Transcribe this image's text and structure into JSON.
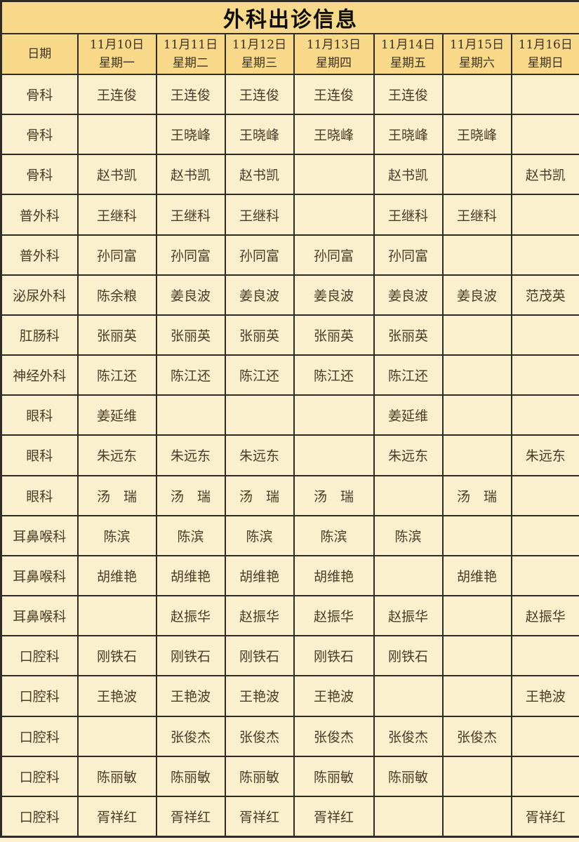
{
  "table": {
    "title": "外科出诊信息",
    "date_col_header": "日期",
    "day_headers": [
      {
        "date": "11月10日",
        "weekday": "星期一"
      },
      {
        "date": "11月11日",
        "weekday": "星期二"
      },
      {
        "date": "11月12日",
        "weekday": "星期三"
      },
      {
        "date": "11月13日",
        "weekday": "星期四"
      },
      {
        "date": "11月14日",
        "weekday": "星期五"
      },
      {
        "date": "11月15日",
        "weekday": "星期六"
      },
      {
        "date": "11月16日",
        "weekday": "星期日"
      }
    ],
    "rows": [
      {
        "dept": "骨科",
        "cells": [
          "王连俊",
          "王连俊",
          "王连俊",
          "王连俊",
          "王连俊",
          "",
          ""
        ]
      },
      {
        "dept": "骨科",
        "cells": [
          "",
          "王晓峰",
          "王晓峰",
          "王晓峰",
          "王晓峰",
          "王晓峰",
          ""
        ]
      },
      {
        "dept": "骨科",
        "cells": [
          "赵书凯",
          "赵书凯",
          "赵书凯",
          "",
          "赵书凯",
          "",
          "赵书凯"
        ]
      },
      {
        "dept": "普外科",
        "cells": [
          "王继科",
          "王继科",
          "王继科",
          "",
          "王继科",
          "王继科",
          ""
        ]
      },
      {
        "dept": "普外科",
        "cells": [
          "孙同富",
          "孙同富",
          "孙同富",
          "孙同富",
          "孙同富",
          "",
          ""
        ]
      },
      {
        "dept": "泌尿外科",
        "cells": [
          "陈余粮",
          "姜良波",
          "姜良波",
          "姜良波",
          "姜良波",
          "姜良波",
          "范茂英"
        ]
      },
      {
        "dept": "肛肠科",
        "cells": [
          "张丽英",
          "张丽英",
          "张丽英",
          "张丽英",
          "张丽英",
          "",
          ""
        ]
      },
      {
        "dept": "神经外科",
        "cells": [
          "陈江还",
          "陈江还",
          "陈江还",
          "陈江还",
          "陈江还",
          "",
          ""
        ]
      },
      {
        "dept": "眼科",
        "cells": [
          "姜延维",
          "",
          "",
          "",
          "姜延维",
          "",
          ""
        ]
      },
      {
        "dept": "眼科",
        "cells": [
          "朱远东",
          "朱远东",
          "朱远东",
          "",
          "朱远东",
          "",
          "朱远东"
        ]
      },
      {
        "dept": "眼科",
        "cells": [
          "汤　瑞",
          "汤　瑞",
          "汤　瑞",
          "汤　瑞",
          "",
          "汤　瑞",
          ""
        ]
      },
      {
        "dept": "耳鼻喉科",
        "cells": [
          "陈滨",
          "陈滨",
          "陈滨",
          "陈滨",
          "陈滨",
          "",
          ""
        ]
      },
      {
        "dept": "耳鼻喉科",
        "cells": [
          "胡维艳",
          "胡维艳",
          "胡维艳",
          "胡维艳",
          "",
          "胡维艳",
          ""
        ]
      },
      {
        "dept": "耳鼻喉科",
        "cells": [
          "",
          "赵振华",
          "赵振华",
          "赵振华",
          "赵振华",
          "",
          "赵振华"
        ]
      },
      {
        "dept": "口腔科",
        "cells": [
          "刚铁石",
          "刚铁石",
          "刚铁石",
          "刚铁石",
          "刚铁石",
          "",
          ""
        ]
      },
      {
        "dept": "口腔科",
        "cells": [
          "王艳波",
          "王艳波",
          "王艳波",
          "王艳波",
          "",
          "",
          "王艳波"
        ]
      },
      {
        "dept": "口腔科",
        "cells": [
          "",
          "张俊杰",
          "张俊杰",
          "张俊杰",
          "张俊杰",
          "张俊杰",
          ""
        ]
      },
      {
        "dept": "口腔科",
        "cells": [
          "陈丽敏",
          "陈丽敏",
          "陈丽敏",
          "陈丽敏",
          "陈丽敏",
          "",
          ""
        ]
      },
      {
        "dept": "口腔科",
        "cells": [
          "胥祥红",
          "胥祥红",
          "胥祥红",
          "胥祥红",
          "",
          "",
          "胥祥红"
        ]
      }
    ],
    "colors": {
      "header_background": "#f8d98a",
      "cell_background": "#fbf0ce",
      "border": "#2e2a24",
      "title_text": "#0f0d0a",
      "cell_text": "#4a3b26"
    }
  }
}
